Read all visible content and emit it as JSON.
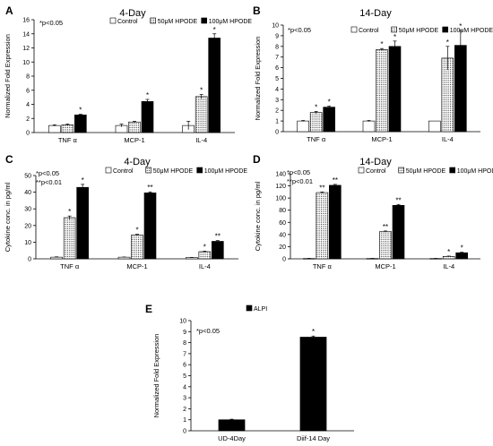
{
  "colors": {
    "axis": "#000000",
    "bar_fill": "#000000",
    "open_fill": "#ffffff"
  },
  "chart_data": [
    {
      "panel": "A",
      "title": "4-Day",
      "type": "bar",
      "ylabel": "Normalized Fold Expression",
      "ylim": [
        0,
        16
      ],
      "yticks": [
        "0",
        "2",
        "4",
        "6",
        "8",
        "10",
        "12",
        "14",
        "16"
      ],
      "note": [
        "*p<0.05"
      ],
      "categories": [
        "TNF α",
        "MCP-1",
        "IL-4"
      ],
      "series": [
        {
          "name": "Control",
          "pattern": "open",
          "values": [
            1.0,
            1.0,
            1.0
          ],
          "errors": [
            0.1,
            0.2,
            0.6
          ],
          "sig": [
            "",
            "",
            ""
          ]
        },
        {
          "name": "50μM HPODE",
          "pattern": "dots",
          "values": [
            1.1,
            1.5,
            5.1
          ],
          "errors": [
            0.1,
            0.1,
            0.3
          ],
          "sig": [
            "",
            "",
            "*"
          ]
        },
        {
          "name": "100μM HPODE",
          "pattern": "solid",
          "values": [
            2.5,
            4.4,
            13.4
          ],
          "errors": [
            0.1,
            0.3,
            0.6
          ],
          "sig": [
            "*",
            "*",
            "*"
          ]
        }
      ]
    },
    {
      "panel": "B",
      "title": "14-Day",
      "type": "bar",
      "ylabel": "Normalized Fold Expression",
      "ylim": [
        0,
        10
      ],
      "yticks": [
        "0",
        "1",
        "2",
        "3",
        "4",
        "5",
        "6",
        "7",
        "8",
        "9",
        "10"
      ],
      "note": [
        "*p<0.05"
      ],
      "categories": [
        "TNF α",
        "MCP-1",
        "IL-4"
      ],
      "series": [
        {
          "name": "Control",
          "pattern": "open",
          "values": [
            1.0,
            1.0,
            1.0
          ],
          "errors": [
            0.05,
            0.05,
            0.0
          ],
          "sig": [
            "",
            "",
            ""
          ]
        },
        {
          "name": "50μM HPODE",
          "pattern": "dots",
          "values": [
            1.8,
            7.7,
            6.9
          ],
          "errors": [
            0.1,
            0.1,
            1.1
          ],
          "sig": [
            "*",
            "*",
            "*"
          ]
        },
        {
          "name": "100μM HPODE",
          "pattern": "solid",
          "values": [
            2.3,
            8.0,
            8.1
          ],
          "errors": [
            0.1,
            0.5,
            1.4
          ],
          "sig": [
            "*",
            "*",
            "*"
          ]
        }
      ]
    },
    {
      "panel": "C",
      "title": "4-Day",
      "type": "bar",
      "ylabel": "Cytokine conc. in pg/ml",
      "ylim": [
        0,
        50
      ],
      "yticks": [
        "0",
        "10",
        "20",
        "30",
        "40",
        "50"
      ],
      "note": [
        "*p<0.05",
        "**p<0.01"
      ],
      "categories": [
        "TNF α",
        "MCP-1",
        "IL-4"
      ],
      "series": [
        {
          "name": "Control",
          "pattern": "open",
          "values": [
            1.0,
            1.0,
            0.8
          ],
          "errors": [
            0.2,
            0.1,
            0.1
          ],
          "sig": [
            "",
            "",
            ""
          ]
        },
        {
          "name": "50μM HPODE",
          "pattern": "dots",
          "values": [
            24.7,
            14.3,
            4.3
          ],
          "errors": [
            1.0,
            0.4,
            0.3
          ],
          "sig": [
            "*",
            "*",
            "*"
          ]
        },
        {
          "name": "100μM HPODE",
          "pattern": "solid",
          "values": [
            42.9,
            39.6,
            10.5
          ],
          "errors": [
            1.8,
            0.6,
            0.5
          ],
          "sig": [
            "*",
            "**",
            "**"
          ]
        }
      ]
    },
    {
      "panel": "D",
      "title": "14-Day",
      "type": "bar",
      "ylabel": "Cytokine conc. in pg/ml",
      "ylim": [
        0,
        140
      ],
      "yticks": [
        "0",
        "20",
        "40",
        "60",
        "80",
        "100",
        "120",
        "140"
      ],
      "note": [
        "*p<0.05",
        "**p<0.01"
      ],
      "categories": [
        "TNF α",
        "MCP-1",
        "IL-4"
      ],
      "series": [
        {
          "name": "Control",
          "pattern": "open",
          "values": [
            0.5,
            0.5,
            0.5
          ],
          "errors": [
            0.2,
            0.2,
            0.2
          ],
          "sig": [
            "",
            "",
            ""
          ]
        },
        {
          "name": "50μM HPODE",
          "pattern": "dots",
          "values": [
            109,
            45,
            4
          ],
          "errors": [
            1.0,
            0.8,
            0.5
          ],
          "sig": [
            "**",
            "**",
            "*"
          ]
        },
        {
          "name": "100μM HPODE",
          "pattern": "solid",
          "values": [
            121,
            88,
            10
          ],
          "errors": [
            1.5,
            1.5,
            0.8
          ],
          "sig": [
            "**",
            "**",
            "*"
          ]
        }
      ]
    },
    {
      "panel": "E",
      "title": "",
      "type": "bar",
      "ylabel": "Normalized Fold Expression",
      "ylim": [
        0,
        10
      ],
      "yticks": [
        "0",
        "1",
        "2",
        "3",
        "4",
        "5",
        "6",
        "7",
        "8",
        "9",
        "10"
      ],
      "note": [
        "*p<0.05"
      ],
      "categories": [
        "UD-4Day",
        "Diif-14 Day"
      ],
      "series": [
        {
          "name": "ALPI",
          "pattern": "solid",
          "values": [
            1.0,
            8.5
          ],
          "errors": [
            0.05,
            0.1
          ],
          "sig": [
            "",
            "*"
          ]
        }
      ]
    }
  ]
}
